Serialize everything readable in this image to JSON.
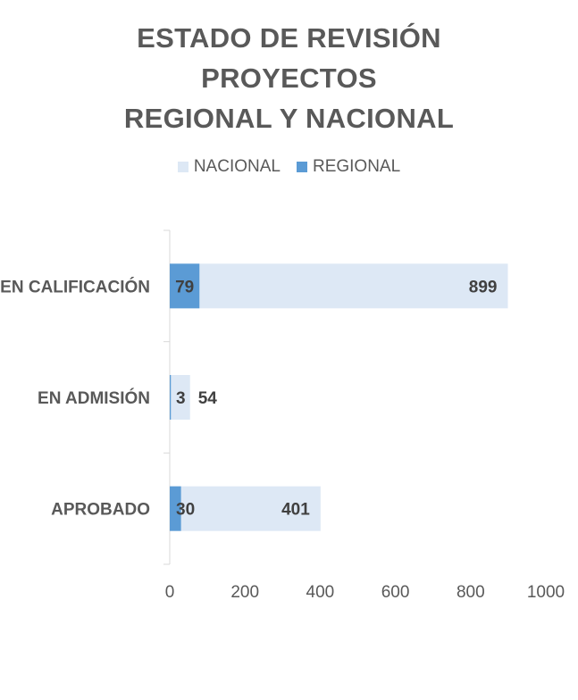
{
  "title_lines": [
    "ESTADO DE REVISIÓN",
    "PROYECTOS",
    "REGIONAL Y NACIONAL"
  ],
  "colors": {
    "nacional": "#dde8f5",
    "regional": "#5b9bd5",
    "axis": "#d9d9d9",
    "text": "#595959"
  },
  "chart_data": {
    "type": "bar",
    "orientation": "horizontal",
    "title": "ESTADO DE REVISIÓN PROYECTOS REGIONAL Y NACIONAL",
    "categories": [
      "EN CALIFICACIÓN",
      "EN ADMISIÓN",
      "APROBADO"
    ],
    "series": [
      {
        "name": "NACIONAL",
        "values": [
          899,
          54,
          401
        ]
      },
      {
        "name": "REGIONAL",
        "values": [
          79,
          3,
          30
        ]
      }
    ],
    "xlim": [
      0,
      1000
    ],
    "xticks": [
      0,
      200,
      400,
      600,
      800,
      1000
    ],
    "legend": "top",
    "grid": false
  }
}
